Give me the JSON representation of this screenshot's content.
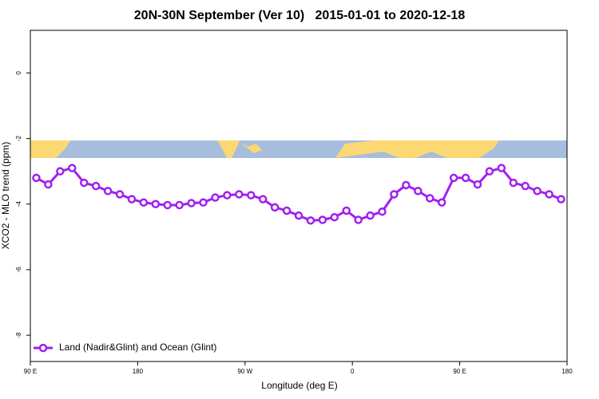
{
  "chart_data": {
    "type": "line",
    "title": "20N-30N September (Ver 10)   2015-01-01 to 2020-12-18",
    "x_label": "Longitude (deg E)",
    "y_label": "XCO2 - MLO trend (ppm)",
    "xlim": [
      90,
      540
    ],
    "xticks": [
      {
        "value": 90,
        "label": "90 E"
      },
      {
        "value": 180,
        "label": "180"
      },
      {
        "value": 270,
        "label": "90 W"
      },
      {
        "value": 360,
        "label": "0"
      },
      {
        "value": 450,
        "label": "90 E"
      },
      {
        "value": 540,
        "label": "180"
      }
    ],
    "ylim": [
      -8.8,
      1.3
    ],
    "yticks": [
      0,
      -2,
      -4,
      -6,
      -8
    ],
    "legend": "bottom-left",
    "x": [
      95,
      105,
      115,
      125,
      135,
      145,
      155,
      165,
      175,
      185,
      195,
      205,
      215,
      225,
      235,
      245,
      255,
      265,
      275,
      285,
      295,
      305,
      315,
      325,
      335,
      345,
      355,
      365,
      375,
      385,
      395,
      405,
      415,
      425,
      435,
      445,
      455,
      465,
      475,
      485,
      495,
      505,
      515,
      525,
      535
    ],
    "series": [
      {
        "name": "Land (Nadir&Glint) and Ocean (Glint)",
        "color": "#a020f0",
        "values": [
          -3.2,
          -3.4,
          -3.0,
          -2.9,
          -3.35,
          -3.45,
          -3.6,
          -3.7,
          -3.85,
          -3.95,
          -4.0,
          -4.03,
          -4.03,
          -3.97,
          -3.95,
          -3.8,
          -3.73,
          -3.7,
          -3.73,
          -3.85,
          -4.1,
          -4.2,
          -4.35,
          -4.5,
          -4.48,
          -4.4,
          -4.2,
          -4.48,
          -4.35,
          -4.23,
          -3.7,
          -3.42,
          -3.6,
          -3.82,
          -3.95,
          -3.2,
          -3.2,
          -3.4,
          -3.0,
          -2.9,
          -3.35,
          -3.45,
          -3.6,
          -3.7,
          -3.85
        ]
      }
    ]
  }
}
